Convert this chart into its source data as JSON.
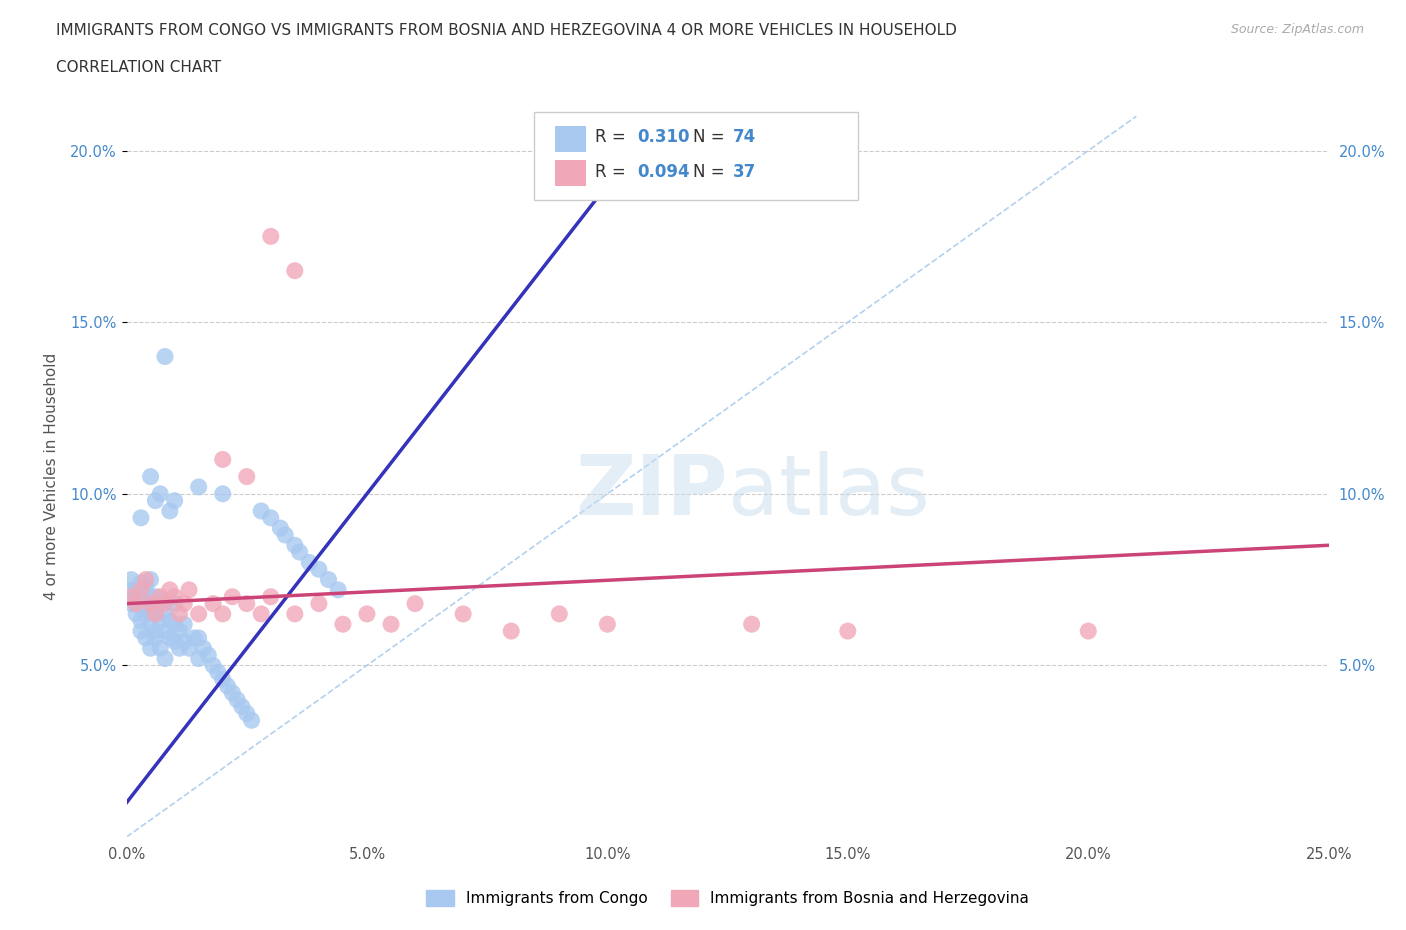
{
  "title_line1": "IMMIGRANTS FROM CONGO VS IMMIGRANTS FROM BOSNIA AND HERZEGOVINA 4 OR MORE VEHICLES IN HOUSEHOLD",
  "title_line2": "CORRELATION CHART",
  "source": "Source: ZipAtlas.com",
  "ylabel": "4 or more Vehicles in Household",
  "xlim": [
    0.0,
    0.25
  ],
  "ylim": [
    0.0,
    0.21
  ],
  "xticks": [
    0.0,
    0.05,
    0.1,
    0.15,
    0.2,
    0.25
  ],
  "xtick_labels": [
    "0.0%",
    "5.0%",
    "10.0%",
    "15.0%",
    "20.0%",
    "25.0%"
  ],
  "yticks": [
    0.05,
    0.1,
    0.15,
    0.2
  ],
  "ytick_labels": [
    "5.0%",
    "10.0%",
    "15.0%",
    "20.0%"
  ],
  "congo_color": "#a8c8f0",
  "bosnia_color": "#f0a8b8",
  "congo_line_color": "#3333bb",
  "bosnia_line_color": "#cc4477",
  "legend_R_congo": "0.310",
  "legend_N_congo": "74",
  "legend_R_bosnia": "0.094",
  "legend_N_bosnia": "37",
  "legend_label_congo": "Immigrants from Congo",
  "legend_label_bosnia": "Immigrants from Bosnia and Herzegovina",
  "grid_color": "#cccccc",
  "background_color": "#ffffff",
  "congo_x": [
    0.001,
    0.001,
    0.001,
    0.002,
    0.002,
    0.002,
    0.002,
    0.003,
    0.003,
    0.003,
    0.003,
    0.003,
    0.004,
    0.004,
    0.004,
    0.004,
    0.005,
    0.005,
    0.005,
    0.005,
    0.005,
    0.006,
    0.006,
    0.006,
    0.006,
    0.007,
    0.007,
    0.007,
    0.008,
    0.008,
    0.008,
    0.009,
    0.009,
    0.01,
    0.01,
    0.01,
    0.011,
    0.011,
    0.012,
    0.012,
    0.013,
    0.014,
    0.015,
    0.015,
    0.016,
    0.017,
    0.018,
    0.019,
    0.02,
    0.021,
    0.022,
    0.023,
    0.024,
    0.025,
    0.026,
    0.028,
    0.03,
    0.032,
    0.033,
    0.035,
    0.036,
    0.038,
    0.04,
    0.042,
    0.044,
    0.015,
    0.02,
    0.01,
    0.008,
    0.005,
    0.007,
    0.006,
    0.009,
    0.003
  ],
  "congo_y": [
    0.068,
    0.072,
    0.075,
    0.065,
    0.07,
    0.072,
    0.068,
    0.063,
    0.067,
    0.071,
    0.074,
    0.06,
    0.065,
    0.069,
    0.073,
    0.058,
    0.062,
    0.066,
    0.07,
    0.075,
    0.055,
    0.06,
    0.065,
    0.07,
    0.058,
    0.063,
    0.068,
    0.055,
    0.06,
    0.065,
    0.052,
    0.058,
    0.063,
    0.057,
    0.062,
    0.068,
    0.055,
    0.06,
    0.057,
    0.062,
    0.055,
    0.058,
    0.052,
    0.058,
    0.055,
    0.053,
    0.05,
    0.048,
    0.046,
    0.044,
    0.042,
    0.04,
    0.038,
    0.036,
    0.034,
    0.095,
    0.093,
    0.09,
    0.088,
    0.085,
    0.083,
    0.08,
    0.078,
    0.075,
    0.072,
    0.102,
    0.1,
    0.098,
    0.14,
    0.105,
    0.1,
    0.098,
    0.095,
    0.093
  ],
  "bosnia_x": [
    0.001,
    0.002,
    0.003,
    0.004,
    0.005,
    0.006,
    0.007,
    0.008,
    0.009,
    0.01,
    0.011,
    0.012,
    0.013,
    0.015,
    0.018,
    0.02,
    0.022,
    0.025,
    0.028,
    0.03,
    0.035,
    0.04,
    0.045,
    0.05,
    0.055,
    0.06,
    0.07,
    0.08,
    0.09,
    0.1,
    0.13,
    0.15,
    0.2,
    0.02,
    0.025,
    0.03,
    0.035
  ],
  "bosnia_y": [
    0.07,
    0.068,
    0.072,
    0.075,
    0.068,
    0.065,
    0.07,
    0.068,
    0.072,
    0.07,
    0.065,
    0.068,
    0.072,
    0.065,
    0.068,
    0.065,
    0.07,
    0.068,
    0.065,
    0.07,
    0.065,
    0.068,
    0.062,
    0.065,
    0.062,
    0.068,
    0.065,
    0.06,
    0.065,
    0.062,
    0.062,
    0.06,
    0.06,
    0.11,
    0.105,
    0.175,
    0.165
  ]
}
